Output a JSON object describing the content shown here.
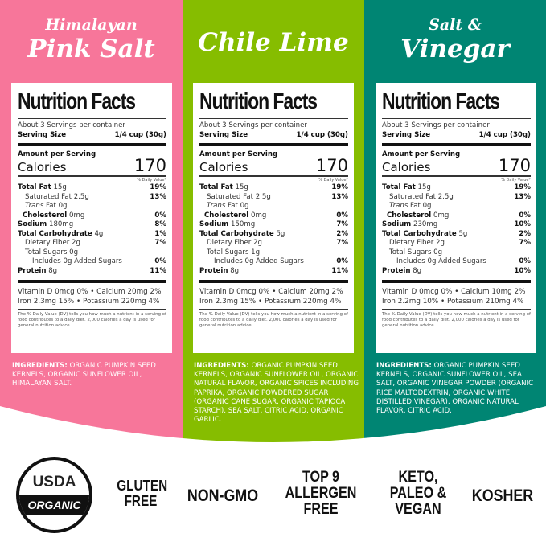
{
  "colors": {
    "pink": "#f7769a",
    "green": "#86bd00",
    "teal": "#008573"
  },
  "panels": [
    {
      "flavor_line1": "Himalayan",
      "flavor_line2": "Pink Salt",
      "color": "#f7769a",
      "label": {
        "title": "Nutrition Facts",
        "servings": "About 3 Servings per container",
        "serving_size_label": "Serving Size",
        "serving_size": "1/4 cup (30g)",
        "amount_per_serving": "Amount per Serving",
        "calories_label": "Calories",
        "calories": "170",
        "dv_header": "% Daily Value*",
        "rows": [
          [
            "Total Fat",
            "15g",
            "19%"
          ],
          [
            "Saturated Fat 2.5g",
            "",
            "13%"
          ],
          [
            "Trans Fat 0g",
            "",
            ""
          ],
          [
            "Cholesterol",
            "0mg",
            "0%"
          ],
          [
            "Sodium",
            "180mg",
            "8%"
          ],
          [
            "Total Carbohydrate",
            "4g",
            "1%"
          ],
          [
            "Dietary Fiber 2g",
            "",
            "7%"
          ],
          [
            "Total Sugars 0g",
            "",
            ""
          ],
          [
            "Includes 0g Added Sugars",
            "",
            "0%"
          ],
          [
            "Protein",
            "8g",
            "11%"
          ]
        ],
        "vitamins_line1": "Vitamin D 0mcg 0% • Calcium 20mg 2%",
        "vitamins_line2": "Iron 2.3mg 15% • Potassium 220mg 4%",
        "footnote": "The % Daily Value (DV) tells you how much a nutrient in a serving of food contributes to a daily diet. 2,000 calories a day is used for general nutrition advice."
      },
      "ingredients_label": "INGREDIENTS:",
      "ingredients": "ORGANIC PUMPKIN SEED KERNELS, ORGANIC SUNFLOWER OIL, HIMALAYAN SALT."
    },
    {
      "flavor_line1": "",
      "flavor_line2": "Chile Lime",
      "color": "#86bd00",
      "label": {
        "title": "Nutrition Facts",
        "servings": "About 3 Servings per container",
        "serving_size_label": "Serving Size",
        "serving_size": "1/4 cup (30g)",
        "amount_per_serving": "Amount per Serving",
        "calories_label": "Calories",
        "calories": "170",
        "dv_header": "% Daily Value*",
        "rows": [
          [
            "Total Fat",
            "15g",
            "19%"
          ],
          [
            "Saturated Fat 2.5g",
            "",
            "13%"
          ],
          [
            "Trans Fat 0g",
            "",
            ""
          ],
          [
            "Cholesterol",
            "0mg",
            "0%"
          ],
          [
            "Sodium",
            "150mg",
            "7%"
          ],
          [
            "Total Carbohydrate",
            "5g",
            "2%"
          ],
          [
            "Dietary Fiber 2g",
            "",
            "7%"
          ],
          [
            "Total Sugars 1g",
            "",
            ""
          ],
          [
            "Includes 0g Added Sugars",
            "",
            "0%"
          ],
          [
            "Protein",
            "8g",
            "11%"
          ]
        ],
        "vitamins_line1": "Vitamin D 0mcg 0% • Calcium 20mg 2%",
        "vitamins_line2": "Iron 2.3mg 15% • Potassium 220mg 4%",
        "footnote": "The % Daily Value (DV) tells you how much a nutrient in a serving of food contributes to a daily diet. 2,000 calories a day is used for general nutrition advice."
      },
      "ingredients_label": "INGREDIENTS:",
      "ingredients": "ORGANIC PUMPKIN SEED KERNELS, ORGANIC SUNFLOWER OIL, ORGANIC NATURAL FLAVOR, ORGANIC SPICES INCLUDING PAPRIKA, ORGANIC POWDERED SUGAR (ORGANIC CANE SUGAR, ORGANIC TAPIOCA STARCH), SEA SALT, CITRIC ACID, ORGANIC GARLIC."
    },
    {
      "flavor_line1": "Salt &",
      "flavor_line2": "Vinegar",
      "color": "#008573",
      "label": {
        "title": "Nutrition Facts",
        "servings": "About 3 Servings per container",
        "serving_size_label": "Serving Size",
        "serving_size": "1/4 cup (30g)",
        "amount_per_serving": "Amount per Serving",
        "calories_label": "Calories",
        "calories": "170",
        "dv_header": "% Daily Value*",
        "rows": [
          [
            "Total Fat",
            "15g",
            "19%"
          ],
          [
            "Saturated Fat 2.5g",
            "",
            "13%"
          ],
          [
            "Trans Fat 0g",
            "",
            ""
          ],
          [
            "Cholesterol",
            "0mg",
            "0%"
          ],
          [
            "Sodium",
            "230mg",
            "10%"
          ],
          [
            "Total Carbohydrate",
            "5g",
            "2%"
          ],
          [
            "Dietary Fiber 2g",
            "",
            "7%"
          ],
          [
            "Total Sugars 0g",
            "",
            ""
          ],
          [
            "Includes 0g Added Sugars",
            "",
            "0%"
          ],
          [
            "Protein",
            "8g",
            "10%"
          ]
        ],
        "vitamins_line1": "Vitamin D 0mcg 0% • Calcium 10mg 2%",
        "vitamins_line2": "Iron 2.2mg 10% • Potassium 210mg 4%",
        "footnote": "The % Daily Value (DV) tells you how much a nutrient in a serving of food contributes to a daily diet. 2,000 calories a day is used for general nutrition advice."
      },
      "ingredients_label": "INGREDIENTS:",
      "ingredients": "ORGANIC PUMPKIN SEED KERNELS, ORGANIC SUNFLOWER OIL, SEA SALT, ORGANIC VINEGAR POWDER (ORGANIC RICE MALTODEXTRIN, ORGANIC WHITE DISTILLED VINEGAR), ORGANIC NATURAL FLAVOR, CITRIC ACID."
    }
  ],
  "badges": {
    "usda_top": "USDA",
    "usda_bottom": "ORGANIC",
    "gluten_free": [
      "GLUTEN",
      "FREE"
    ],
    "non_gmo": "NON-GMO",
    "allergen": [
      "TOP 9",
      "ALLERGEN",
      "FREE"
    ],
    "keto": [
      "KETO,",
      "PALEO &",
      "VEGAN"
    ],
    "kosher": "KOSHER"
  }
}
